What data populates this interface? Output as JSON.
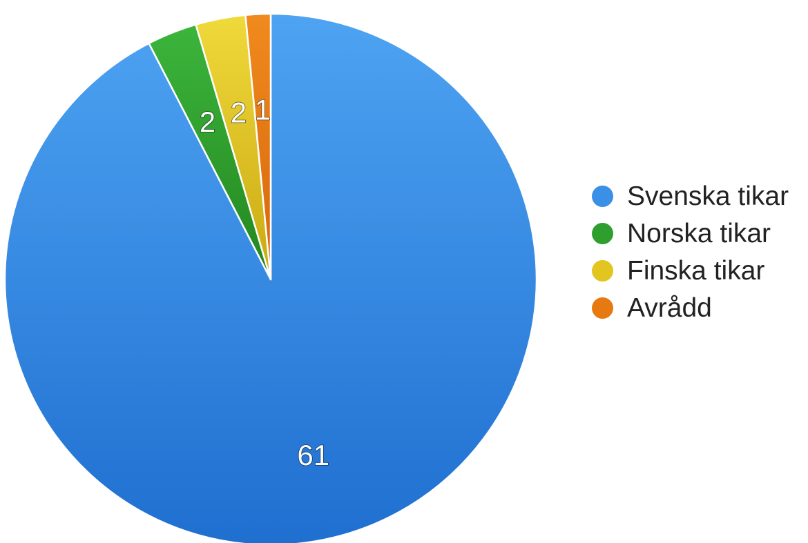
{
  "chart_data": {
    "type": "pie",
    "title": "",
    "categories": [
      "Svenska tikar",
      "Norska tikar",
      "Finska tikar",
      "Avrådd"
    ],
    "values": [
      61,
      2,
      2,
      1
    ],
    "data_labels": [
      "61",
      "2",
      "2",
      "1"
    ],
    "colors": [
      "#3a8fe6",
      "#2e9f2e",
      "#e3c51f",
      "#e6790f"
    ],
    "legend_position": "right",
    "start_angle": "12 o'clock",
    "direction": "counter-clockwise from first slice"
  },
  "legend": {
    "items": [
      {
        "label": "Svenska tikar",
        "color": "#3a8fe6"
      },
      {
        "label": "Norska tikar",
        "color": "#2e9f2e"
      },
      {
        "label": "Finska tikar",
        "color": "#e3c51f"
      },
      {
        "label": "Avrådd",
        "color": "#e6790f"
      }
    ]
  }
}
